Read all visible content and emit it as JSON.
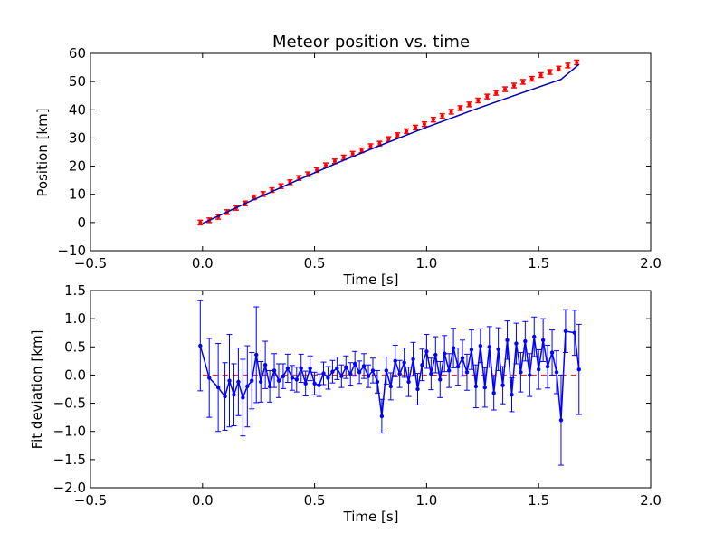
{
  "chart_data": [
    {
      "type": "scatter",
      "title": "Meteor position vs. time",
      "xlabel": "Time [s]",
      "ylabel": "Position [km]",
      "xlim": [
        -0.5,
        2.0
      ],
      "ylim": [
        -10,
        60
      ],
      "xticks": [
        "−0.5",
        "0.0",
        "0.5",
        "1.0",
        "1.5",
        "2.0"
      ],
      "yticks": [
        "−10",
        "0",
        "10",
        "20",
        "30",
        "40",
        "50",
        "60"
      ],
      "grid": false,
      "series": [
        {
          "kind": "errorbar-markers",
          "color": "#ff0000",
          "x": [
            -0.01,
            0.03,
            0.07,
            0.11,
            0.15,
            0.19,
            0.23,
            0.27,
            0.31,
            0.35,
            0.39,
            0.43,
            0.47,
            0.51,
            0.55,
            0.59,
            0.63,
            0.67,
            0.71,
            0.75,
            0.79,
            0.83,
            0.87,
            0.91,
            0.95,
            0.99,
            1.03,
            1.07,
            1.11,
            1.15,
            1.19,
            1.23,
            1.27,
            1.31,
            1.35,
            1.39,
            1.43,
            1.47,
            1.51,
            1.55,
            1.59,
            1.63,
            1.67
          ],
          "y": [
            0.0,
            0.8,
            2.0,
            3.7,
            5.2,
            6.8,
            8.9,
            10.1,
            11.5,
            12.9,
            14.3,
            15.8,
            17.1,
            18.6,
            20.3,
            21.7,
            23.1,
            24.4,
            25.6,
            27.1,
            28.0,
            29.6,
            31.0,
            32.4,
            33.7,
            34.9,
            36.5,
            37.8,
            39.3,
            40.6,
            41.9,
            43.3,
            44.7,
            46.0,
            47.3,
            48.6,
            49.9,
            51.0,
            52.3,
            53.4,
            54.6,
            55.7,
            56.8
          ],
          "yerr": 0.8
        },
        {
          "kind": "line",
          "color": "#0000aa",
          "x": [
            0.0,
            0.2,
            0.4,
            0.6,
            0.8,
            1.0,
            1.2,
            1.4,
            1.6,
            1.68
          ],
          "y": [
            -0.3,
            7.1,
            14.2,
            21.1,
            27.6,
            33.8,
            39.7,
            45.3,
            50.8,
            56.1
          ]
        }
      ]
    },
    {
      "type": "line",
      "xlabel": "Time [s]",
      "ylabel": "Fit deviation [km]",
      "xlim": [
        -0.5,
        2.0
      ],
      "ylim": [
        -2.0,
        1.5
      ],
      "xticks": [
        "−0.5",
        "0.0",
        "0.5",
        "1.0",
        "1.5",
        "2.0"
      ],
      "yticks": [
        "−2.0",
        "−1.5",
        "−1.0",
        "−0.5",
        "0.0",
        "0.5",
        "1.0",
        "1.5"
      ],
      "grid": false,
      "reference_line": {
        "y": 0,
        "color": "#ff0000",
        "style": "dashed"
      },
      "series": [
        {
          "kind": "errorbar-line",
          "color": "#0000ff",
          "x": [
            -0.01,
            0.03,
            0.07,
            0.1,
            0.12,
            0.14,
            0.16,
            0.18,
            0.2,
            0.22,
            0.24,
            0.26,
            0.28,
            0.3,
            0.32,
            0.34,
            0.36,
            0.38,
            0.4,
            0.42,
            0.44,
            0.46,
            0.48,
            0.5,
            0.52,
            0.54,
            0.56,
            0.58,
            0.6,
            0.62,
            0.64,
            0.66,
            0.68,
            0.7,
            0.72,
            0.74,
            0.76,
            0.78,
            0.8,
            0.82,
            0.84,
            0.86,
            0.88,
            0.9,
            0.92,
            0.94,
            0.96,
            0.98,
            1.0,
            1.02,
            1.04,
            1.06,
            1.08,
            1.1,
            1.12,
            1.14,
            1.16,
            1.18,
            1.2,
            1.22,
            1.24,
            1.26,
            1.28,
            1.3,
            1.32,
            1.34,
            1.36,
            1.38,
            1.4,
            1.42,
            1.44,
            1.46,
            1.48,
            1.5,
            1.52,
            1.54,
            1.56,
            1.58,
            1.6,
            1.62,
            1.66,
            1.68
          ],
          "y": [
            0.52,
            -0.05,
            -0.22,
            -0.38,
            -0.1,
            -0.35,
            -0.12,
            -0.4,
            -0.2,
            -0.1,
            0.36,
            -0.12,
            0.18,
            -0.2,
            0.08,
            -0.1,
            -0.02,
            0.12,
            -0.05,
            -0.08,
            0.12,
            -0.15,
            0.12,
            -0.15,
            -0.18,
            0.03,
            -0.05,
            0.06,
            0.12,
            -0.02,
            0.14,
            0.02,
            0.2,
            0.05,
            0.16,
            -0.02,
            0.08,
            -0.12,
            -0.73,
            0.08,
            -0.2,
            0.25,
            0.02,
            0.22,
            -0.12,
            0.28,
            -0.25,
            0.18,
            0.42,
            0.02,
            0.36,
            -0.08,
            0.38,
            0.08,
            0.48,
            0.15,
            0.3,
            0.05,
            0.45,
            -0.2,
            0.52,
            -0.22,
            0.5,
            -0.32,
            0.46,
            -0.18,
            0.62,
            -0.35,
            0.56,
            0.05,
            0.6,
            0.0,
            0.68,
            0.1,
            0.62,
            0.15,
            0.4,
            0.05,
            -0.8,
            0.78,
            0.75,
            0.1
          ],
          "yerr": [
            0.8,
            0.7,
            0.78,
            0.6,
            0.82,
            0.55,
            0.6,
            0.68,
            0.72,
            0.5,
            0.85,
            0.36,
            0.42,
            0.28,
            0.3,
            0.3,
            0.22,
            0.25,
            0.22,
            0.22,
            0.25,
            0.22,
            0.22,
            0.2,
            0.2,
            0.2,
            0.2,
            0.2,
            0.2,
            0.2,
            0.2,
            0.2,
            0.22,
            0.2,
            0.22,
            0.2,
            0.22,
            0.2,
            0.3,
            0.24,
            0.24,
            0.28,
            0.24,
            0.26,
            0.26,
            0.3,
            0.28,
            0.28,
            0.3,
            0.28,
            0.32,
            0.32,
            0.32,
            0.3,
            0.35,
            0.33,
            0.32,
            0.32,
            0.35,
            0.38,
            0.3,
            0.35,
            0.36,
            0.3,
            0.38,
            0.33,
            0.34,
            0.3,
            0.36,
            0.35,
            0.35,
            0.38,
            0.35,
            0.35,
            0.38,
            0.38,
            0.4,
            0.38,
            0.8,
            0.38,
            0.4,
            0.8
          ]
        }
      ]
    }
  ]
}
